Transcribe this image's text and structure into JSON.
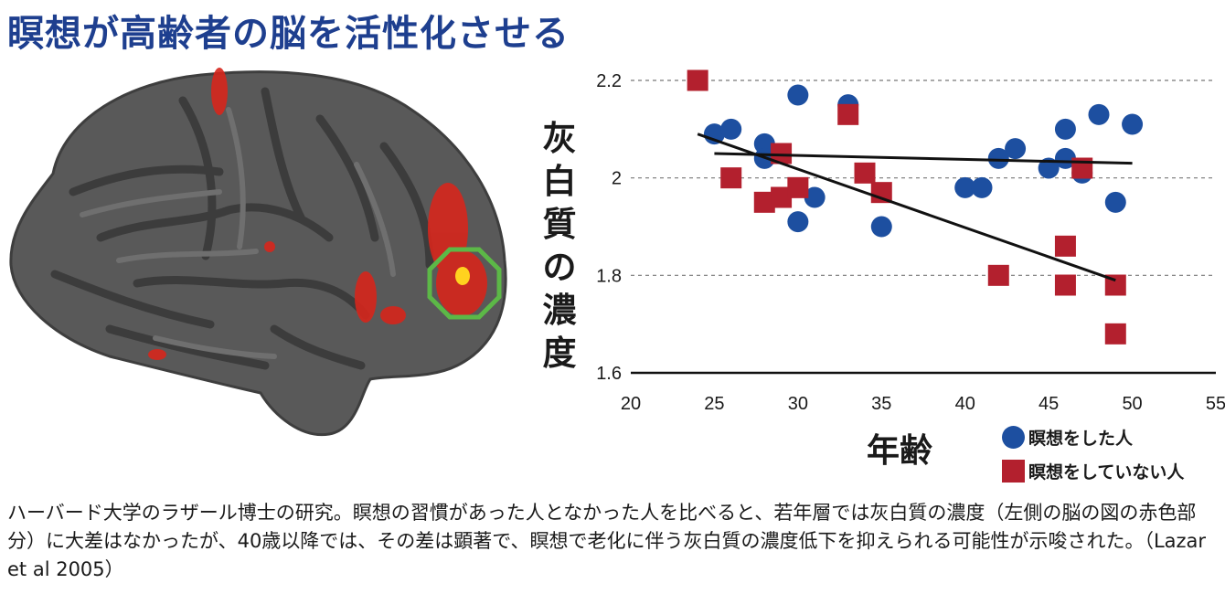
{
  "title": "瞑想が高齢者の脳を活性化させる",
  "caption": "ハーバード大学のラザール博士の研究。瞑想の習慣があった人となかった人を比べると、若年層では灰白質の濃度（左側の脳の図の赤色部分）に大差はなかったが、40歳以降では、その差は顕著で、瞑想で老化に伴う灰白質の濃度低下を抑えられる可能性が示唆された。（Lazar et al 2005）",
  "colors": {
    "title": "#1e3f8f",
    "meditators": "#1d4fa0",
    "non_meditators": "#b3202e",
    "highlight_ring": "#5cb847",
    "brain": "#5a5a5a"
  },
  "chart_data": {
    "type": "scatter",
    "title": "",
    "xlabel": "年齢",
    "ylabel": "灰白質の濃度",
    "xlim": [
      20,
      55
    ],
    "ylim": [
      1.6,
      2.2
    ],
    "xticks": [
      "20",
      "25",
      "30",
      "35",
      "40",
      "45",
      "50",
      "55"
    ],
    "yticks": [
      "2.2",
      "2",
      "1.8",
      "1.6"
    ],
    "grid": "horizontal dashed",
    "legend": "bottom-right",
    "series": [
      {
        "name": "瞑想をした人",
        "marker": "circle",
        "color": "#1d4fa0",
        "points": [
          [
            25,
            2.09
          ],
          [
            26,
            2.1
          ],
          [
            28,
            2.07
          ],
          [
            28,
            2.04
          ],
          [
            30,
            2.17
          ],
          [
            30,
            1.91
          ],
          [
            31,
            1.96
          ],
          [
            33,
            2.15
          ],
          [
            35,
            1.9
          ],
          [
            40,
            1.98
          ],
          [
            41,
            1.98
          ],
          [
            42,
            2.04
          ],
          [
            43,
            2.06
          ],
          [
            45,
            2.02
          ],
          [
            46,
            2.1
          ],
          [
            46,
            2.04
          ],
          [
            47,
            2.01
          ],
          [
            48,
            2.13
          ],
          [
            49,
            1.95
          ],
          [
            50,
            2.11
          ]
        ],
        "trend": [
          [
            25,
            2.05
          ],
          [
            50,
            2.03
          ]
        ]
      },
      {
        "name": "瞑想をしていない人",
        "marker": "square",
        "color": "#b3202e",
        "points": [
          [
            24,
            2.2
          ],
          [
            26,
            2.0
          ],
          [
            28,
            1.95
          ],
          [
            29,
            2.05
          ],
          [
            29,
            1.96
          ],
          [
            30,
            1.98
          ],
          [
            33,
            2.13
          ],
          [
            34,
            2.01
          ],
          [
            35,
            1.97
          ],
          [
            42,
            1.8
          ],
          [
            46,
            1.86
          ],
          [
            46,
            1.78
          ],
          [
            47,
            2.02
          ],
          [
            49,
            1.78
          ],
          [
            49,
            1.68
          ]
        ],
        "trend": [
          [
            24,
            2.09
          ],
          [
            49,
            1.79
          ]
        ]
      }
    ]
  }
}
